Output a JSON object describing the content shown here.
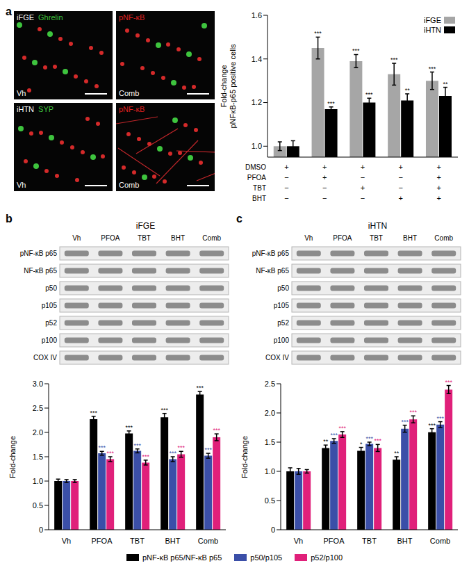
{
  "chart_data": [
    {
      "panel": "a",
      "type": "bar",
      "ylabel": [
        "Fold-change",
        "pNFκB-p65 positive cells"
      ],
      "ylim": [
        0.95,
        1.6
      ],
      "yticks": [
        {
          "value": 1,
          "label": "1.0"
        },
        {
          "value": 1.2,
          "label": "1.2"
        },
        {
          "value": 1.4,
          "label": "1.4"
        },
        {
          "value": 1.6,
          "label": "1.6"
        }
      ],
      "legend": "upper right",
      "treatment_table": {
        "rows": [
          {
            "label": "DMSO",
            "marks": [
              "+",
              "+",
              "+",
              "+",
              "+"
            ]
          },
          {
            "label": "PFOA",
            "marks": [
              "−",
              "+",
              "−",
              "−",
              "+"
            ]
          },
          {
            "label": "TBT",
            "marks": [
              "−",
              "−",
              "+",
              "−",
              "+"
            ]
          },
          {
            "label": "BHT",
            "marks": [
              "−",
              "−",
              "−",
              "+",
              "+"
            ]
          }
        ]
      },
      "series": [
        {
          "name": "iFGE",
          "color": "#a6a6a6",
          "values": [
            1.0,
            1.45,
            1.39,
            1.33,
            1.3
          ],
          "errors": [
            0.02,
            0.05,
            0.03,
            0.05,
            0.04
          ],
          "significance": [
            null,
            "***",
            "***",
            "***",
            "***"
          ]
        },
        {
          "name": "iHTN",
          "color": "#000000",
          "values": [
            1.0,
            1.17,
            1.2,
            1.21,
            1.23
          ],
          "errors": [
            0.025,
            0.01,
            0.02,
            0.03,
            0.04
          ],
          "significance": [
            null,
            "***",
            "***",
            "**",
            "**"
          ]
        }
      ],
      "micrographs": [
        {
          "row_label": "iFGE",
          "stains": [
            {
              "text": "Ghrelin",
              "color": "#3ec43e"
            },
            {
              "text": "pNF-κB",
              "color": "#e02020"
            }
          ],
          "panels": [
            "Vh",
            "Comb"
          ]
        },
        {
          "row_label": "iHTN",
          "stains": [
            {
              "text": "SYP",
              "color": "#3ec43e"
            },
            {
              "text": "pNF-κB",
              "color": "#e02020"
            }
          ],
          "panels": [
            "Vh",
            "Comb"
          ]
        }
      ]
    },
    {
      "panel": "b",
      "type": "bar",
      "ylabel": [
        "Fold-change"
      ],
      "ylim": [
        0,
        3
      ],
      "yticks": [
        0,
        0.5,
        {
          "value": 1,
          "label": "1.0"
        },
        1.5,
        {
          "value": 2,
          "label": "2.0"
        },
        2.5,
        {
          "value": 3,
          "label": "3.0"
        }
      ],
      "legend": "bottom",
      "categories": [
        "Vh",
        "PFOA",
        "TBT",
        "BHT",
        "Comb"
      ],
      "blot": {
        "title": "iFGE",
        "lanes": [
          "Vh",
          "PFOA",
          "TBT",
          "BHT",
          "Comb"
        ],
        "rows": [
          "pNF-κB p65",
          "NF-κB p65",
          "p50",
          "p105",
          "p52",
          "p100",
          "COX IV"
        ]
      },
      "series": [
        {
          "name": "pNF-κB p65/NF-κB p65",
          "color": "#000000",
          "values": [
            1.0,
            2.27,
            1.98,
            2.31,
            2.78
          ],
          "errors": [
            0.04,
            0.06,
            0.05,
            0.08,
            0.06
          ],
          "significance": [
            null,
            "***",
            "***",
            "***",
            "***"
          ]
        },
        {
          "name": "p50/p105",
          "color": "#3b4fa8",
          "values": [
            1.0,
            1.57,
            1.62,
            1.45,
            1.52
          ],
          "errors": [
            0.03,
            0.04,
            0.04,
            0.05,
            0.05
          ],
          "significance": [
            null,
            "***",
            "***",
            "***",
            "***"
          ]
        },
        {
          "name": "p52/p100",
          "color": "#e0207a",
          "values": [
            1.0,
            1.45,
            1.38,
            1.55,
            1.9
          ],
          "errors": [
            0.03,
            0.05,
            0.05,
            0.06,
            0.07
          ],
          "significance": [
            null,
            "***",
            "***",
            "***",
            "***"
          ]
        }
      ]
    },
    {
      "panel": "c",
      "type": "bar",
      "ylabel": [
        "Fold-change"
      ],
      "ylim": [
        0,
        2.5
      ],
      "yticks": [
        0,
        0.5,
        {
          "value": 1,
          "label": "1.0"
        },
        1.5,
        {
          "value": 2,
          "label": "2.0"
        },
        2.5
      ],
      "legend": "bottom",
      "categories": [
        "Vh",
        "PFOA",
        "TBT",
        "BHT",
        "Comb"
      ],
      "blot": {
        "title": "iHTN",
        "lanes": [
          "Vh",
          "PFOA",
          "TBT",
          "BHT",
          "Comb"
        ],
        "rows": [
          "pNF-κB p65",
          "NF-κB p65",
          "p50",
          "p105",
          "p52",
          "p100",
          "COX IV"
        ]
      },
      "series": [
        {
          "name": "pNF-κB p65/NF-κB p65",
          "color": "#000000",
          "values": [
            1.0,
            1.4,
            1.35,
            1.2,
            1.67
          ],
          "errors": [
            0.06,
            0.05,
            0.06,
            0.05,
            0.06
          ],
          "significance": [
            null,
            "**",
            "*",
            "**",
            "***"
          ]
        },
        {
          "name": "p50/p105",
          "color": "#3b4fa8",
          "values": [
            1.0,
            1.52,
            1.47,
            1.73,
            1.8
          ],
          "errors": [
            0.05,
            0.04,
            0.03,
            0.06,
            0.05
          ],
          "significance": [
            null,
            "***",
            "***",
            "***",
            "***"
          ]
        },
        {
          "name": "p52/p100",
          "color": "#e0207a",
          "values": [
            1.0,
            1.63,
            1.4,
            1.89,
            2.4
          ],
          "errors": [
            0.03,
            0.05,
            0.06,
            0.06,
            0.07
          ],
          "significance": [
            null,
            "***",
            "***",
            "***",
            "***"
          ]
        }
      ]
    }
  ]
}
